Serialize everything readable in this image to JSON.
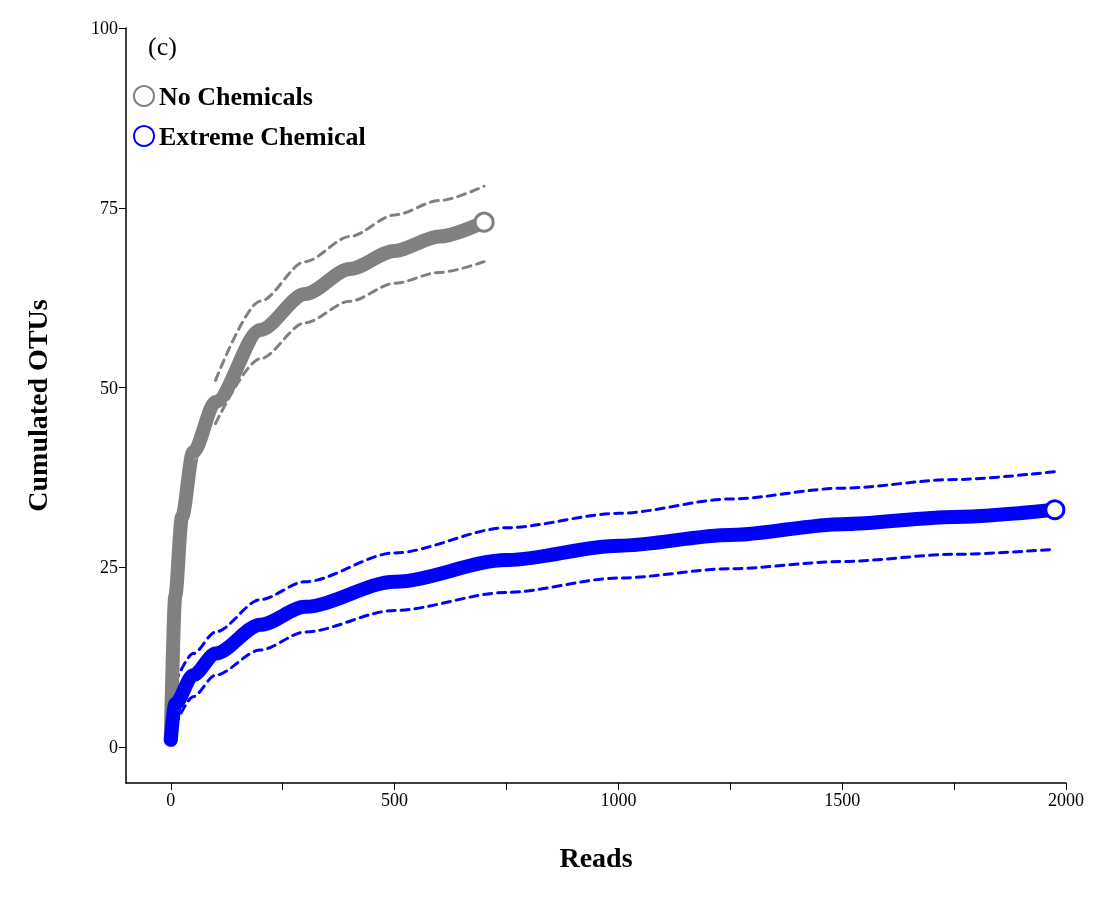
{
  "chart_data": {
    "type": "line",
    "title": "(c)",
    "xlabel": "Reads",
    "ylabel": "Cumulated OTUs",
    "xlim": [
      -100,
      2000
    ],
    "ylim": [
      -5,
      100
    ],
    "xticks": [
      0,
      {
        "value": 250,
        "label": null
      },
      500,
      {
        "value": 750,
        "label": null
      },
      1000,
      {
        "value": 1250,
        "label": null
      },
      1500,
      {
        "value": 1750,
        "label": null
      },
      2000
    ],
    "yticks": [
      0,
      25,
      50,
      75,
      100
    ],
    "grid": false,
    "legend": "top left",
    "series": [
      {
        "name": "No Chemicals",
        "color": "#808080",
        "x": [
          0,
          10,
          25,
          50,
          100,
          200,
          300,
          400,
          500,
          600,
          700
        ],
        "values": [
          1,
          21,
          32,
          41,
          48,
          58,
          63,
          66.5,
          69,
          71,
          73
        ]
      },
      {
        "color": "#808080",
        "line_style": "dashed",
        "x": [
          100,
          200,
          300,
          400,
          500,
          600,
          700
        ],
        "values": [
          51,
          62,
          67.5,
          71,
          74,
          76,
          78
        ]
      },
      {
        "color": "#808080",
        "line_style": "dashed",
        "x": [
          100,
          200,
          300,
          400,
          500,
          600,
          700
        ],
        "values": [
          45,
          54,
          59,
          62,
          64.5,
          66,
          67.5
        ]
      },
      {
        "name": "Extreme Chemical",
        "color": "#0000ff",
        "x": [
          0,
          10,
          50,
          100,
          200,
          300,
          500,
          750,
          1000,
          1250,
          1500,
          1750,
          1975
        ],
        "values": [
          1,
          6,
          10,
          13,
          17,
          19.5,
          23,
          26,
          28,
          29.5,
          31,
          32,
          33
        ]
      },
      {
        "color": "#0000ff",
        "line_style": "dashed",
        "x": [
          10,
          50,
          100,
          200,
          300,
          500,
          750,
          1000,
          1250,
          1500,
          1750,
          1975
        ],
        "values": [
          9,
          13,
          16,
          20.5,
          23,
          27,
          30.5,
          32.5,
          34.5,
          36,
          37.2,
          38.3
        ]
      },
      {
        "color": "#0000ff",
        "line_style": "dashed",
        "x": [
          10,
          50,
          100,
          200,
          300,
          500,
          750,
          1000,
          1250,
          1500,
          1750,
          1975
        ],
        "values": [
          3,
          7,
          10,
          13.5,
          16,
          19,
          21.5,
          23.5,
          24.8,
          25.8,
          26.8,
          27.5
        ]
      }
    ]
  }
}
